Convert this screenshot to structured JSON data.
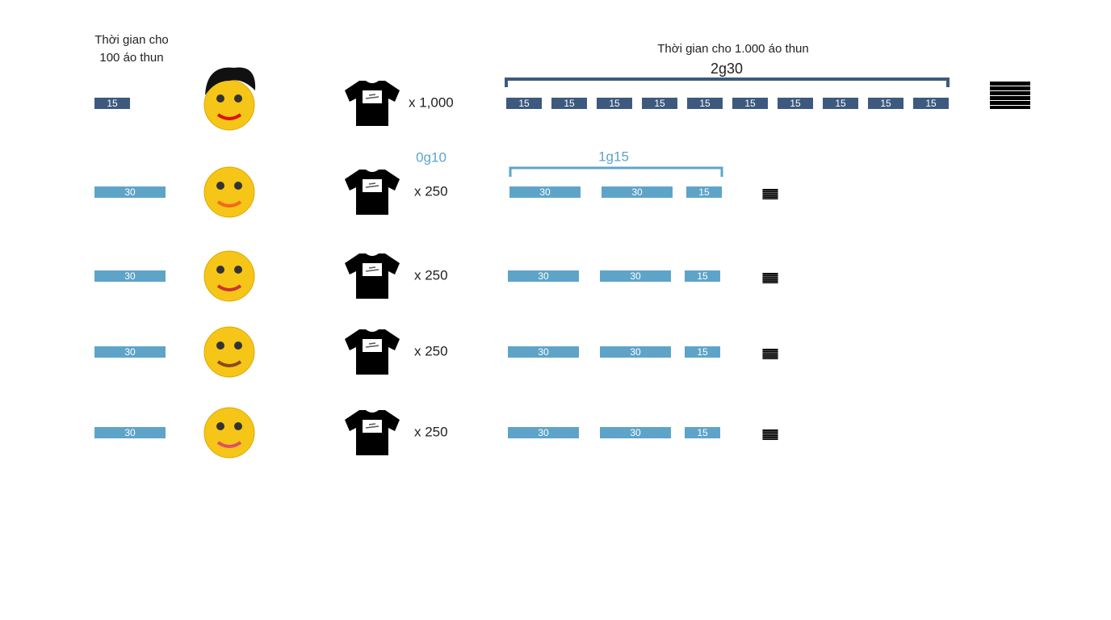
{
  "header": {
    "left_title": [
      "Thời gian cho",
      "100 áo thun"
    ],
    "right_title": "Thời gian cho 1.000 áo thun",
    "total_time": "2g30"
  },
  "parallel": {
    "setup_time": "0g10",
    "batch_time": "1g15"
  },
  "rows": [
    {
      "unit_block": "15",
      "quantity": "x 1,000",
      "blocks": [
        "15",
        "15",
        "15",
        "15",
        "15",
        "15",
        "15",
        "15",
        "15",
        "15"
      ]
    },
    {
      "unit_block": "30",
      "quantity": "x 250",
      "blocks": [
        "30",
        "30",
        "15"
      ]
    },
    {
      "unit_block": "30",
      "quantity": "x 250",
      "blocks": [
        "30",
        "30",
        "15"
      ]
    },
    {
      "unit_block": "30",
      "quantity": "x 250",
      "blocks": [
        "30",
        "30",
        "15"
      ]
    },
    {
      "unit_block": "30",
      "quantity": "x 250",
      "blocks": [
        "30",
        "30",
        "15"
      ]
    }
  ]
}
